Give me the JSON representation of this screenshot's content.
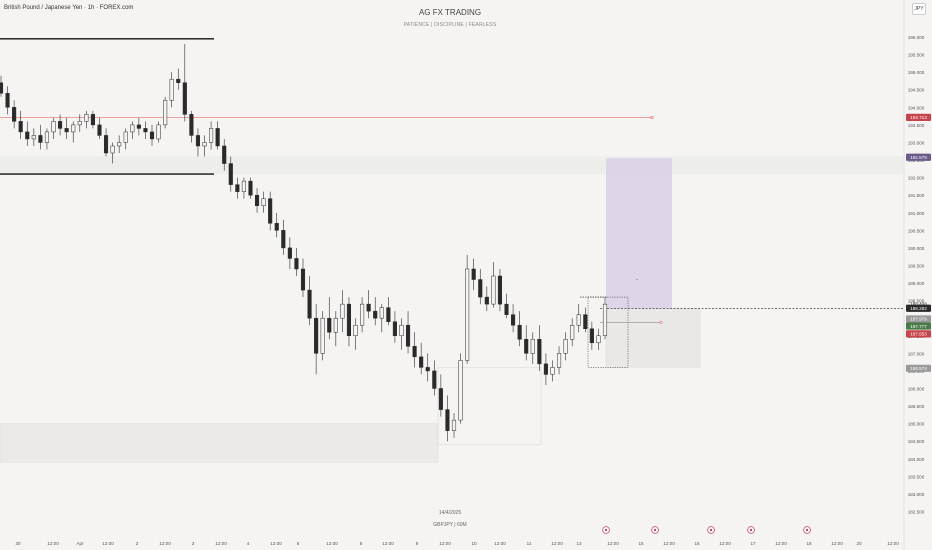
{
  "header": {
    "symbol_title": "British Pound / Japanese Yen · 1h · FOREX.com",
    "currency_button": "JPY"
  },
  "watermark": {
    "title": "AG FX TRADING",
    "subtitle": "PATIENCE  |  DISCIPLINE  |  FEARLESS",
    "date": "14/4/2025",
    "symbol_tf": "GBPJPY  |  60M"
  },
  "colors": {
    "background": "#f5f4f2",
    "candle": "#2a2a2a",
    "red_line": "#e05050",
    "purple_zone": "#d9cfe6",
    "zone_gray": "#e8e7e5",
    "price_dark": "#2a2a2a",
    "price_green": "#4a7a4a",
    "price_red": "#c8444c",
    "price_purple": "#6a5a8a",
    "price_gray": "#9a9a9a"
  },
  "chart_data": {
    "type": "candlestick",
    "pair": "GBPJPY",
    "timeframe": "1h",
    "y_ticks": [
      196.0,
      195.5,
      195.0,
      194.5,
      194.0,
      193.5,
      193.0,
      192.5,
      192.0,
      191.5,
      191.0,
      190.5,
      190.0,
      189.5,
      189.0,
      188.5,
      188.0,
      187.5,
      187.0,
      186.5,
      186.0,
      185.5,
      185.0,
      184.5,
      184.0,
      183.5,
      183.0,
      182.5
    ],
    "y_tick_labels": [
      "196.000",
      "195.500",
      "195.000",
      "194.500",
      "194.000",
      "193.500",
      "193.000",
      "192.500",
      "192.000",
      "191.500",
      "191.000",
      "190.500",
      "190.000",
      "189.500",
      "189.000",
      "188.500",
      "188.000",
      "187.500",
      "187.000",
      "186.500",
      "186.000",
      "185.500",
      "185.000",
      "184.500",
      "184.000",
      "183.500",
      "183.000",
      "182.500"
    ],
    "ylim": [
      182.4,
      196.2
    ],
    "x_labels": [
      "30",
      "12:00",
      "Apr",
      "12:00",
      "2",
      "12:00",
      "3",
      "12:00",
      "4",
      "12:00",
      "6",
      "12:00",
      "8",
      "12:00",
      "9",
      "12:00",
      "10",
      "12:00",
      "11",
      "12:00",
      "13",
      "12:00",
      "15",
      "12:00",
      "16",
      "12:00",
      "17",
      "12:00",
      "18",
      "12:00",
      "20",
      "12:00"
    ],
    "price_labels": [
      {
        "value": 193.713,
        "text": "193.713",
        "style": "red"
      },
      {
        "value": 192.579,
        "text": "192.579",
        "style": "purple"
      },
      {
        "value": 188.408,
        "text": "188.408",
        "style": "plain"
      },
      {
        "value": 188.282,
        "text": "188.282",
        "style": "dark"
      },
      {
        "value": 187.979,
        "text": "187.979",
        "style": "gray"
      },
      {
        "value": 187.777,
        "text": "187.777",
        "style": "green"
      },
      {
        "value": 187.553,
        "text": "187.553",
        "style": "red"
      },
      {
        "value": 186.574,
        "text": "186.574",
        "style": "gray"
      }
    ],
    "horizontal_levels": [
      {
        "value": 195.95,
        "kind": "black"
      },
      {
        "value": 192.1,
        "kind": "black"
      },
      {
        "value": 193.71,
        "kind": "red"
      },
      {
        "value": 188.28,
        "kind": "dashed"
      }
    ],
    "ohlc": [
      [
        194.7,
        194.9,
        194.3,
        194.4
      ],
      [
        194.4,
        194.6,
        193.8,
        194.0
      ],
      [
        194.0,
        194.2,
        193.4,
        193.6
      ],
      [
        193.6,
        193.9,
        193.1,
        193.3
      ],
      [
        193.3,
        193.6,
        192.9,
        193.1
      ],
      [
        193.1,
        193.4,
        192.9,
        193.2
      ],
      [
        193.2,
        193.5,
        192.8,
        193.0
      ],
      [
        193.0,
        193.4,
        192.8,
        193.3
      ],
      [
        193.3,
        193.7,
        193.1,
        193.6
      ],
      [
        193.6,
        193.8,
        193.2,
        193.4
      ],
      [
        193.4,
        193.7,
        193.1,
        193.3
      ],
      [
        193.3,
        193.6,
        193.0,
        193.5
      ],
      [
        193.5,
        193.8,
        193.3,
        193.6
      ],
      [
        193.6,
        193.9,
        193.4,
        193.8
      ],
      [
        193.8,
        193.9,
        193.4,
        193.5
      ],
      [
        193.5,
        193.7,
        193.1,
        193.2
      ],
      [
        193.2,
        193.4,
        192.6,
        192.7
      ],
      [
        192.7,
        193.0,
        192.4,
        192.9
      ],
      [
        192.9,
        193.2,
        192.7,
        193.0
      ],
      [
        193.0,
        193.4,
        192.8,
        193.3
      ],
      [
        193.3,
        193.6,
        193.1,
        193.5
      ],
      [
        193.5,
        193.7,
        193.2,
        193.4
      ],
      [
        193.4,
        193.6,
        193.1,
        193.3
      ],
      [
        193.3,
        193.5,
        192.9,
        193.1
      ],
      [
        193.1,
        193.6,
        193.0,
        193.5
      ],
      [
        193.5,
        194.3,
        193.4,
        194.2
      ],
      [
        194.2,
        195.0,
        194.0,
        194.8
      ],
      [
        194.8,
        195.1,
        194.5,
        194.7
      ],
      [
        194.7,
        195.8,
        193.6,
        193.8
      ],
      [
        193.8,
        193.9,
        193.0,
        193.2
      ],
      [
        193.2,
        193.4,
        192.6,
        192.9
      ],
      [
        192.9,
        193.2,
        192.6,
        193.0
      ],
      [
        193.0,
        193.6,
        192.8,
        193.4
      ],
      [
        193.4,
        193.6,
        192.8,
        192.9
      ],
      [
        192.9,
        193.1,
        192.2,
        192.4
      ],
      [
        192.4,
        192.6,
        191.6,
        191.8
      ],
      [
        191.8,
        192.0,
        191.4,
        191.6
      ],
      [
        191.6,
        192.0,
        191.4,
        191.9
      ],
      [
        191.9,
        192.0,
        191.4,
        191.5
      ],
      [
        191.5,
        191.7,
        191.0,
        191.2
      ],
      [
        191.2,
        191.6,
        191.0,
        191.4
      ],
      [
        191.4,
        191.6,
        190.5,
        190.7
      ],
      [
        190.7,
        191.0,
        190.3,
        190.5
      ],
      [
        190.5,
        190.8,
        189.8,
        190.0
      ],
      [
        190.0,
        190.3,
        189.4,
        189.7
      ],
      [
        189.7,
        190.0,
        189.2,
        189.4
      ],
      [
        189.4,
        189.7,
        188.6,
        188.8
      ],
      [
        188.8,
        189.2,
        187.8,
        188.0
      ],
      [
        188.0,
        188.4,
        186.4,
        187.0
      ],
      [
        187.0,
        188.2,
        186.8,
        188.0
      ],
      [
        188.0,
        188.6,
        187.4,
        187.6
      ],
      [
        187.6,
        188.2,
        187.2,
        188.0
      ],
      [
        188.0,
        188.8,
        187.6,
        188.4
      ],
      [
        188.4,
        188.6,
        187.2,
        187.5
      ],
      [
        187.5,
        188.0,
        187.1,
        187.8
      ],
      [
        187.8,
        188.6,
        187.6,
        188.4
      ],
      [
        188.4,
        188.8,
        188.0,
        188.2
      ],
      [
        188.2,
        188.6,
        187.8,
        188.0
      ],
      [
        188.0,
        188.4,
        187.6,
        188.3
      ],
      [
        188.3,
        188.6,
        187.8,
        187.9
      ],
      [
        187.9,
        188.2,
        187.3,
        187.5
      ],
      [
        187.5,
        188.0,
        187.1,
        187.8
      ],
      [
        187.8,
        188.2,
        187.0,
        187.2
      ],
      [
        187.2,
        187.6,
        186.6,
        186.9
      ],
      [
        186.9,
        187.3,
        186.4,
        186.6
      ],
      [
        186.6,
        187.0,
        186.2,
        186.5
      ],
      [
        186.5,
        186.8,
        185.8,
        186.0
      ],
      [
        186.0,
        186.4,
        185.2,
        185.4
      ],
      [
        185.4,
        185.8,
        184.5,
        184.8
      ],
      [
        184.8,
        185.3,
        184.6,
        185.1
      ],
      [
        185.1,
        187.0,
        185.0,
        186.8
      ],
      [
        186.8,
        189.8,
        186.7,
        189.4
      ],
      [
        189.4,
        189.7,
        188.8,
        189.1
      ],
      [
        189.1,
        189.4,
        188.4,
        188.6
      ],
      [
        188.6,
        188.9,
        188.2,
        188.4
      ],
      [
        188.4,
        189.6,
        188.3,
        189.2
      ],
      [
        189.2,
        189.4,
        188.2,
        188.4
      ],
      [
        188.4,
        188.7,
        188.0,
        188.1
      ],
      [
        188.1,
        188.4,
        187.6,
        187.8
      ],
      [
        187.8,
        188.2,
        187.2,
        187.4
      ],
      [
        187.4,
        187.8,
        186.8,
        187.0
      ],
      [
        187.0,
        187.6,
        186.7,
        187.4
      ],
      [
        187.4,
        187.8,
        186.5,
        186.7
      ],
      [
        186.7,
        187.0,
        186.1,
        186.4
      ],
      [
        186.4,
        186.8,
        186.2,
        186.6
      ],
      [
        186.6,
        187.2,
        186.4,
        187.0
      ],
      [
        187.0,
        187.6,
        186.8,
        187.4
      ],
      [
        187.4,
        188.0,
        187.2,
        187.8
      ],
      [
        187.8,
        188.4,
        187.6,
        188.1
      ],
      [
        188.1,
        188.3,
        187.6,
        187.7
      ],
      [
        187.7,
        187.9,
        187.1,
        187.3
      ],
      [
        187.3,
        187.7,
        187.1,
        187.5
      ],
      [
        187.5,
        188.6,
        187.4,
        188.4
      ]
    ]
  }
}
